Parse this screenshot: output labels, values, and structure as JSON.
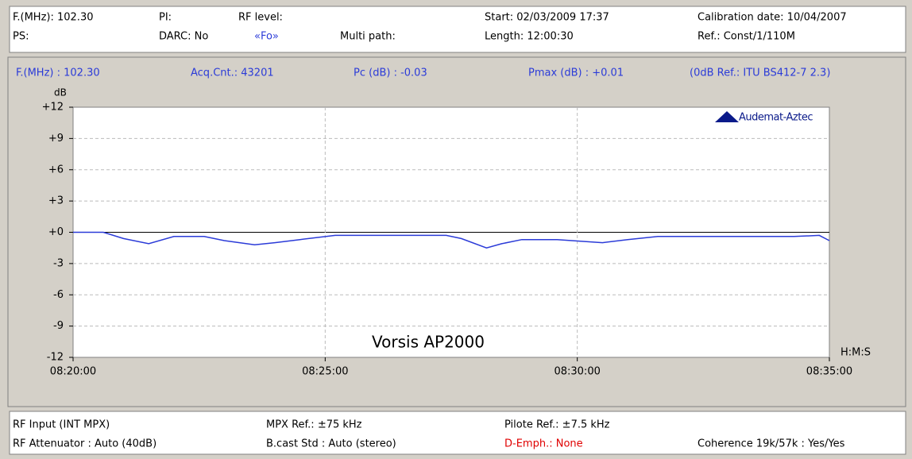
{
  "header": {
    "row1": [
      "F.(MHz): 102.30",
      "PI:",
      "RF level:",
      "Start: 02/03/2009 17:37",
      "Calibration date: 10/04/2007"
    ],
    "row2": [
      "PS:",
      "DARC: No",
      "«Fo»",
      "Multi path:",
      "Length: 12:00:30",
      "Ref.: Const/1/110M"
    ]
  },
  "chart_data": {
    "type": "line",
    "info": [
      "F.(MHz) : 102.30",
      "Acq.Cnt.: 43201",
      "Pc (dB) : -0.03",
      "Pmax (dB) : +0.01",
      "(0dB Ref.: ITU BS412-7 2.3)"
    ],
    "y_label": "dB",
    "x_label": "H:M:S",
    "annotation": "Vorsis AP2000",
    "logo": "Audemat-Aztec",
    "color": "#2b3bd8",
    "grid": true,
    "x": [
      500,
      500.6,
      501,
      501.5,
      502,
      502.6,
      503,
      503.6,
      504,
      504.5,
      505.2,
      507.4,
      507.7,
      508.2,
      508.5,
      508.9,
      509.6,
      510.5,
      511,
      511.6,
      514.3,
      514.8,
      515
    ],
    "values": [
      0,
      0,
      -0.6,
      -1.1,
      -0.4,
      -0.4,
      -0.8,
      -1.2,
      -1.0,
      -0.7,
      -0.3,
      -0.3,
      -0.6,
      -1.5,
      -1.1,
      -0.7,
      -0.7,
      -1.0,
      -0.7,
      -0.4,
      -0.4,
      -0.3,
      -0.8
    ],
    "xlim": [
      500,
      515
    ],
    "xticks": [
      {
        "value": 500,
        "label": "08:20:00"
      },
      {
        "value": 505,
        "label": "08:25:00"
      },
      {
        "value": 510,
        "label": "08:30:00"
      },
      {
        "value": 515,
        "label": "08:35:00"
      }
    ],
    "ylim": [
      -12,
      12
    ],
    "yticks": [
      {
        "value": 12,
        "label": "+12"
      },
      {
        "value": 9,
        "label": "+9"
      },
      {
        "value": 6,
        "label": "+6"
      },
      {
        "value": 3,
        "label": "+3"
      },
      {
        "value": 0,
        "label": "+0"
      },
      -3,
      -6,
      -9,
      -12
    ]
  },
  "footer": {
    "row1": [
      "RF Input (INT MPX)",
      "MPX Ref.: ±75 kHz",
      "Pilote Ref.: ±7.5 kHz"
    ],
    "row2": [
      "RF Attenuator : Auto (40dB)",
      "B.cast Std : Auto (stereo)",
      "D-Emph.: None",
      "Coherence 19k/57k : Yes/Yes"
    ]
  }
}
